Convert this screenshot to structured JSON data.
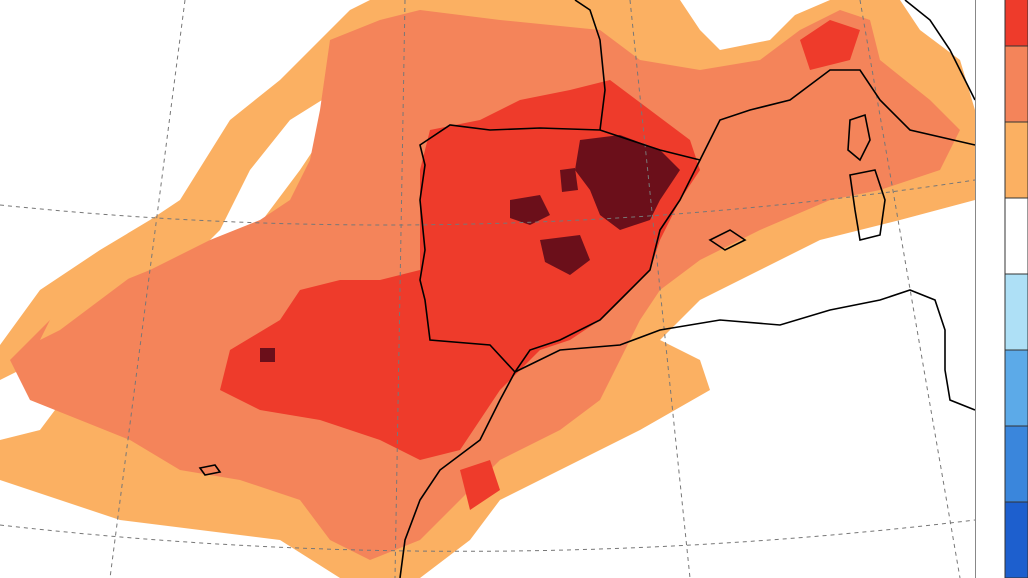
{
  "colorbar": {
    "colors": [
      "#ee3b2b",
      "#f4845a",
      "#fbb062",
      "#ffffff",
      "#aee0f6",
      "#5caae8",
      "#3a86dc",
      "#1d5fce"
    ]
  }
}
